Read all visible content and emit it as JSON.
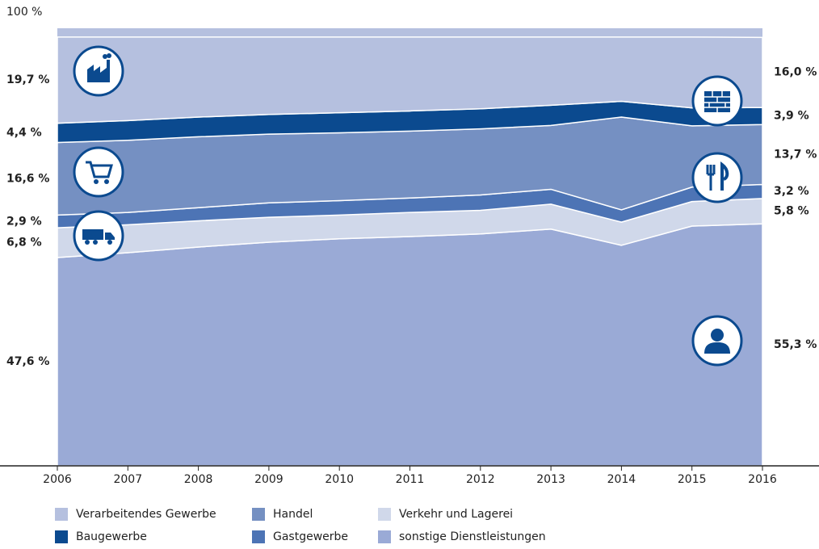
{
  "chart_data": {
    "type": "stacked_area",
    "categories": [
      "2006",
      "2007",
      "2008",
      "2009",
      "2010",
      "2011",
      "2012",
      "2013",
      "2014",
      "2015",
      "2016"
    ],
    "ylim": [
      0,
      100
    ],
    "yticks": [
      {
        "value": 100,
        "label": "100 %"
      }
    ],
    "series": [
      {
        "name": "Verarbeitendes Gewerbe",
        "color": "#b5c0df",
        "values": [
          19.7,
          19.1,
          18.3,
          17.7,
          17.3,
          16.9,
          16.4,
          15.6,
          14.7,
          16.2,
          16.0
        ],
        "value_labels": [
          "19,7 %",
          null,
          null,
          null,
          null,
          null,
          null,
          null,
          null,
          null,
          "16,0 %"
        ]
      },
      {
        "name": "Baugewerbe",
        "color": "#0b4a8f",
        "values": [
          4.4,
          4.5,
          4.5,
          4.5,
          4.6,
          4.6,
          4.6,
          4.6,
          3.6,
          4.1,
          3.9
        ],
        "value_labels": [
          "4,4 %",
          null,
          null,
          null,
          null,
          null,
          null,
          null,
          null,
          null,
          "3,9 %"
        ]
      },
      {
        "name": "Handel",
        "color": "#7590c2",
        "values": [
          16.6,
          16.5,
          16.2,
          15.7,
          15.5,
          15.3,
          15.1,
          14.6,
          21.2,
          14.0,
          13.7
        ],
        "value_labels": [
          "16,6 %",
          null,
          null,
          null,
          null,
          null,
          null,
          null,
          null,
          null,
          "13,7 %"
        ]
      },
      {
        "name": "Gastgewerbe",
        "color": "#4d74b5",
        "values": [
          2.9,
          2.8,
          3.0,
          3.3,
          3.3,
          3.3,
          3.5,
          3.4,
          2.8,
          3.3,
          3.2
        ],
        "value_labels": [
          "2,9 %",
          null,
          null,
          null,
          null,
          null,
          null,
          null,
          null,
          null,
          "3,2 %"
        ]
      },
      {
        "name": "Verkehr und Lagerei",
        "color": "#d0d8ea",
        "values": [
          6.8,
          6.4,
          6.0,
          5.7,
          5.4,
          5.5,
          5.4,
          5.7,
          5.3,
          5.6,
          5.8
        ],
        "value_labels": [
          "6,8 %",
          null,
          null,
          null,
          null,
          null,
          null,
          null,
          null,
          null,
          "5,8 %"
        ]
      },
      {
        "name": "sonstige Dienstleistungen",
        "color": "#9aaad6",
        "values": [
          47.6,
          48.7,
          50.0,
          51.1,
          51.9,
          52.4,
          53.0,
          54.1,
          50.4,
          54.8,
          55.3
        ],
        "value_labels": [
          "47,6 %",
          null,
          null,
          null,
          null,
          null,
          null,
          null,
          null,
          null,
          "55,3 %"
        ]
      }
    ]
  }
}
